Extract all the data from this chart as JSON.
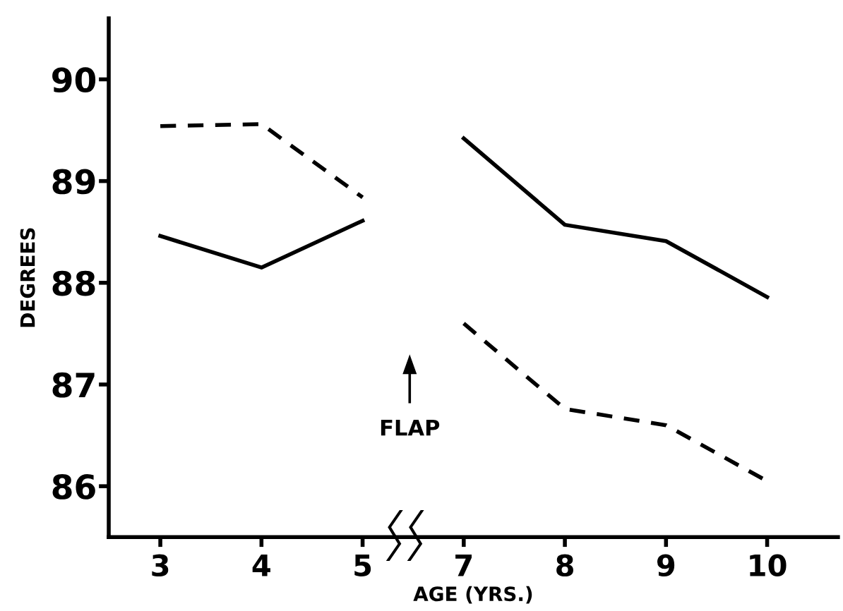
{
  "chart_data": {
    "type": "line",
    "xlabel": "AGE (YRS.)",
    "ylabel": "DEGREES",
    "categories": [
      "3",
      "4",
      "5",
      "7",
      "8",
      "9",
      "10"
    ],
    "series": [
      {
        "color": "#000000",
        "line_style": "solid",
        "values": [
          88.46,
          88.15,
          88.61,
          null,
          null,
          null,
          null
        ]
      },
      {
        "color": "#000000",
        "line_style": "dashed",
        "values": [
          89.54,
          89.56,
          88.84,
          null,
          null,
          null,
          null
        ]
      },
      {
        "color": "#000000",
        "line_style": "solid",
        "values": [
          null,
          null,
          null,
          89.42,
          88.57,
          88.41,
          87.86
        ]
      },
      {
        "color": "#000000",
        "line_style": "dashed",
        "values": [
          null,
          null,
          null,
          87.6,
          86.76,
          86.6,
          86.05
        ]
      }
    ],
    "ylim": [
      85.5,
      90.6
    ],
    "yticks": [
      86,
      87,
      88,
      89,
      90
    ],
    "annotations": [
      "FLAP"
    ]
  }
}
